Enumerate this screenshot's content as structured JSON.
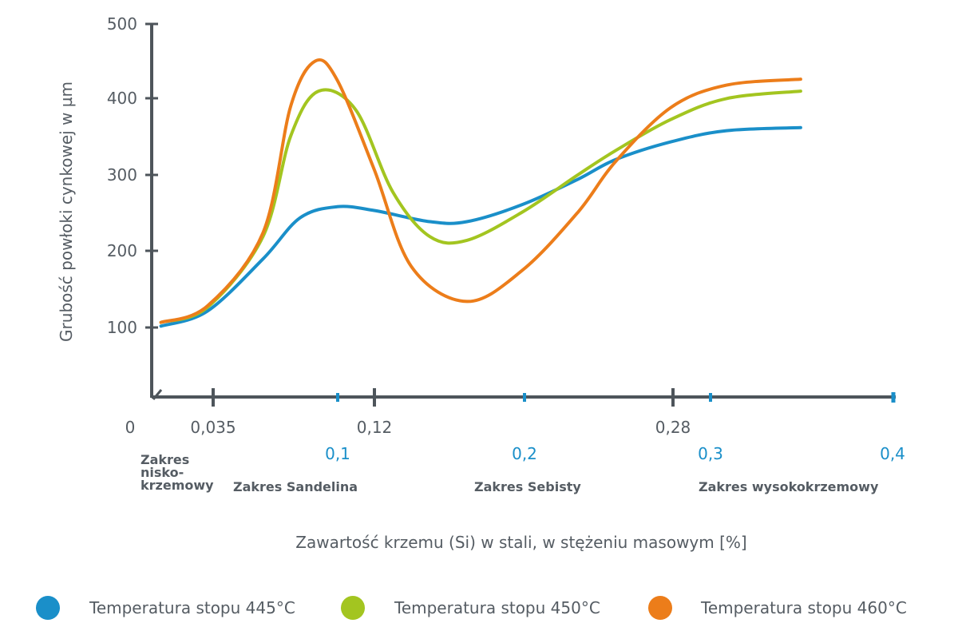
{
  "chart_data": {
    "type": "line",
    "ylabel": "Grubość powłoki cynkowej w µm",
    "xlabel": "Zawartość krzemu (Si) w stali, w stężeniu masowym [%]",
    "ylim": [
      0,
      500
    ],
    "xlim": [
      0,
      0.4
    ],
    "y_ticks": [
      "100",
      "200",
      "300",
      "400",
      "500"
    ],
    "x_origin_label": "0",
    "x_ticks_dark": [
      "0,035",
      "0,12",
      "0,28"
    ],
    "x_ticks_blue": [
      "0,1",
      "0,2",
      "0,3",
      "0,4"
    ],
    "ranges": [
      {
        "label": "Zakres nisko-krzemowy",
        "lines": [
          "Zakres",
          "nisko-",
          "krzemowy"
        ]
      },
      {
        "label": "Zakres Sandelina"
      },
      {
        "label": "Zakres Sebisty"
      },
      {
        "label": "Zakres wysokokrzemowy"
      }
    ],
    "series": [
      {
        "name": "Temperatura stopu 445°C",
        "color": "#1a8fc9",
        "x": [
          0.005,
          0.03,
          0.06,
          0.08,
          0.1,
          0.12,
          0.15,
          0.17,
          0.2,
          0.23,
          0.25,
          0.28,
          0.31,
          0.35
        ],
        "y": [
          95,
          115,
          185,
          240,
          255,
          250,
          235,
          235,
          258,
          292,
          318,
          342,
          357,
          361
        ]
      },
      {
        "name": "Temperatura stopu 450°C",
        "color": "#a3c520",
        "x": [
          0.005,
          0.03,
          0.06,
          0.075,
          0.09,
          0.11,
          0.13,
          0.15,
          0.17,
          0.2,
          0.23,
          0.25,
          0.28,
          0.31,
          0.35
        ],
        "y": [
          100,
          120,
          215,
          350,
          410,
          385,
          275,
          215,
          210,
          248,
          298,
          330,
          372,
          400,
          410
        ]
      },
      {
        "name": "Temperatura stopu 460°C",
        "color": "#ec7d1a",
        "x": [
          0.005,
          0.03,
          0.06,
          0.075,
          0.088,
          0.1,
          0.12,
          0.14,
          0.17,
          0.2,
          0.23,
          0.25,
          0.28,
          0.31,
          0.35
        ],
        "y": [
          100,
          122,
          220,
          390,
          450,
          425,
          305,
          175,
          128,
          170,
          248,
          315,
          388,
          418,
          426
        ]
      }
    ]
  },
  "legend": {
    "items": [
      {
        "label": "Temperatura stopu 445°C",
        "color": "#1a8fc9"
      },
      {
        "label": "Temperatura stopu 450°C",
        "color": "#a3c520"
      },
      {
        "label": "Temperatura stopu 460°C",
        "color": "#ec7d1a"
      }
    ]
  },
  "colors": {
    "axis": "#4e555b",
    "text": "#555c63",
    "accent_blue": "#1a8fc9"
  }
}
